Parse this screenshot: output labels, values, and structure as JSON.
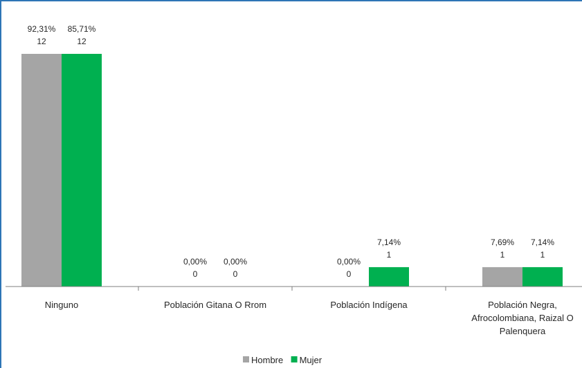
{
  "chart_data": {
    "type": "bar",
    "categories": [
      [
        "Ninguno"
      ],
      [
        "Población Gitana O Rrom"
      ],
      [
        "Población Indígena"
      ],
      [
        "Población Negra,",
        "Afrocolombiana, Raizal O",
        "Palenquera"
      ]
    ],
    "series": [
      {
        "name": "Hombre",
        "color": "#a5a5a5",
        "values": [
          12,
          0,
          0,
          1
        ],
        "percent_labels": [
          "92,31%",
          "0,00%",
          "0,00%",
          "7,69%"
        ],
        "count_labels": [
          "12",
          "0",
          "0",
          "1"
        ]
      },
      {
        "name": "Mujer",
        "color": "#00b050",
        "values": [
          12,
          0,
          1,
          1
        ],
        "percent_labels": [
          "85,71%",
          "0,00%",
          "7,14%",
          "7,14%"
        ],
        "count_labels": [
          "12",
          "0",
          "1",
          "1"
        ]
      }
    ],
    "ylim": [
      0,
      12
    ],
    "grid": false,
    "legend": "bottom-center",
    "colors": {
      "frame": "#2e75b6",
      "axis": "#7f7f7f"
    }
  }
}
